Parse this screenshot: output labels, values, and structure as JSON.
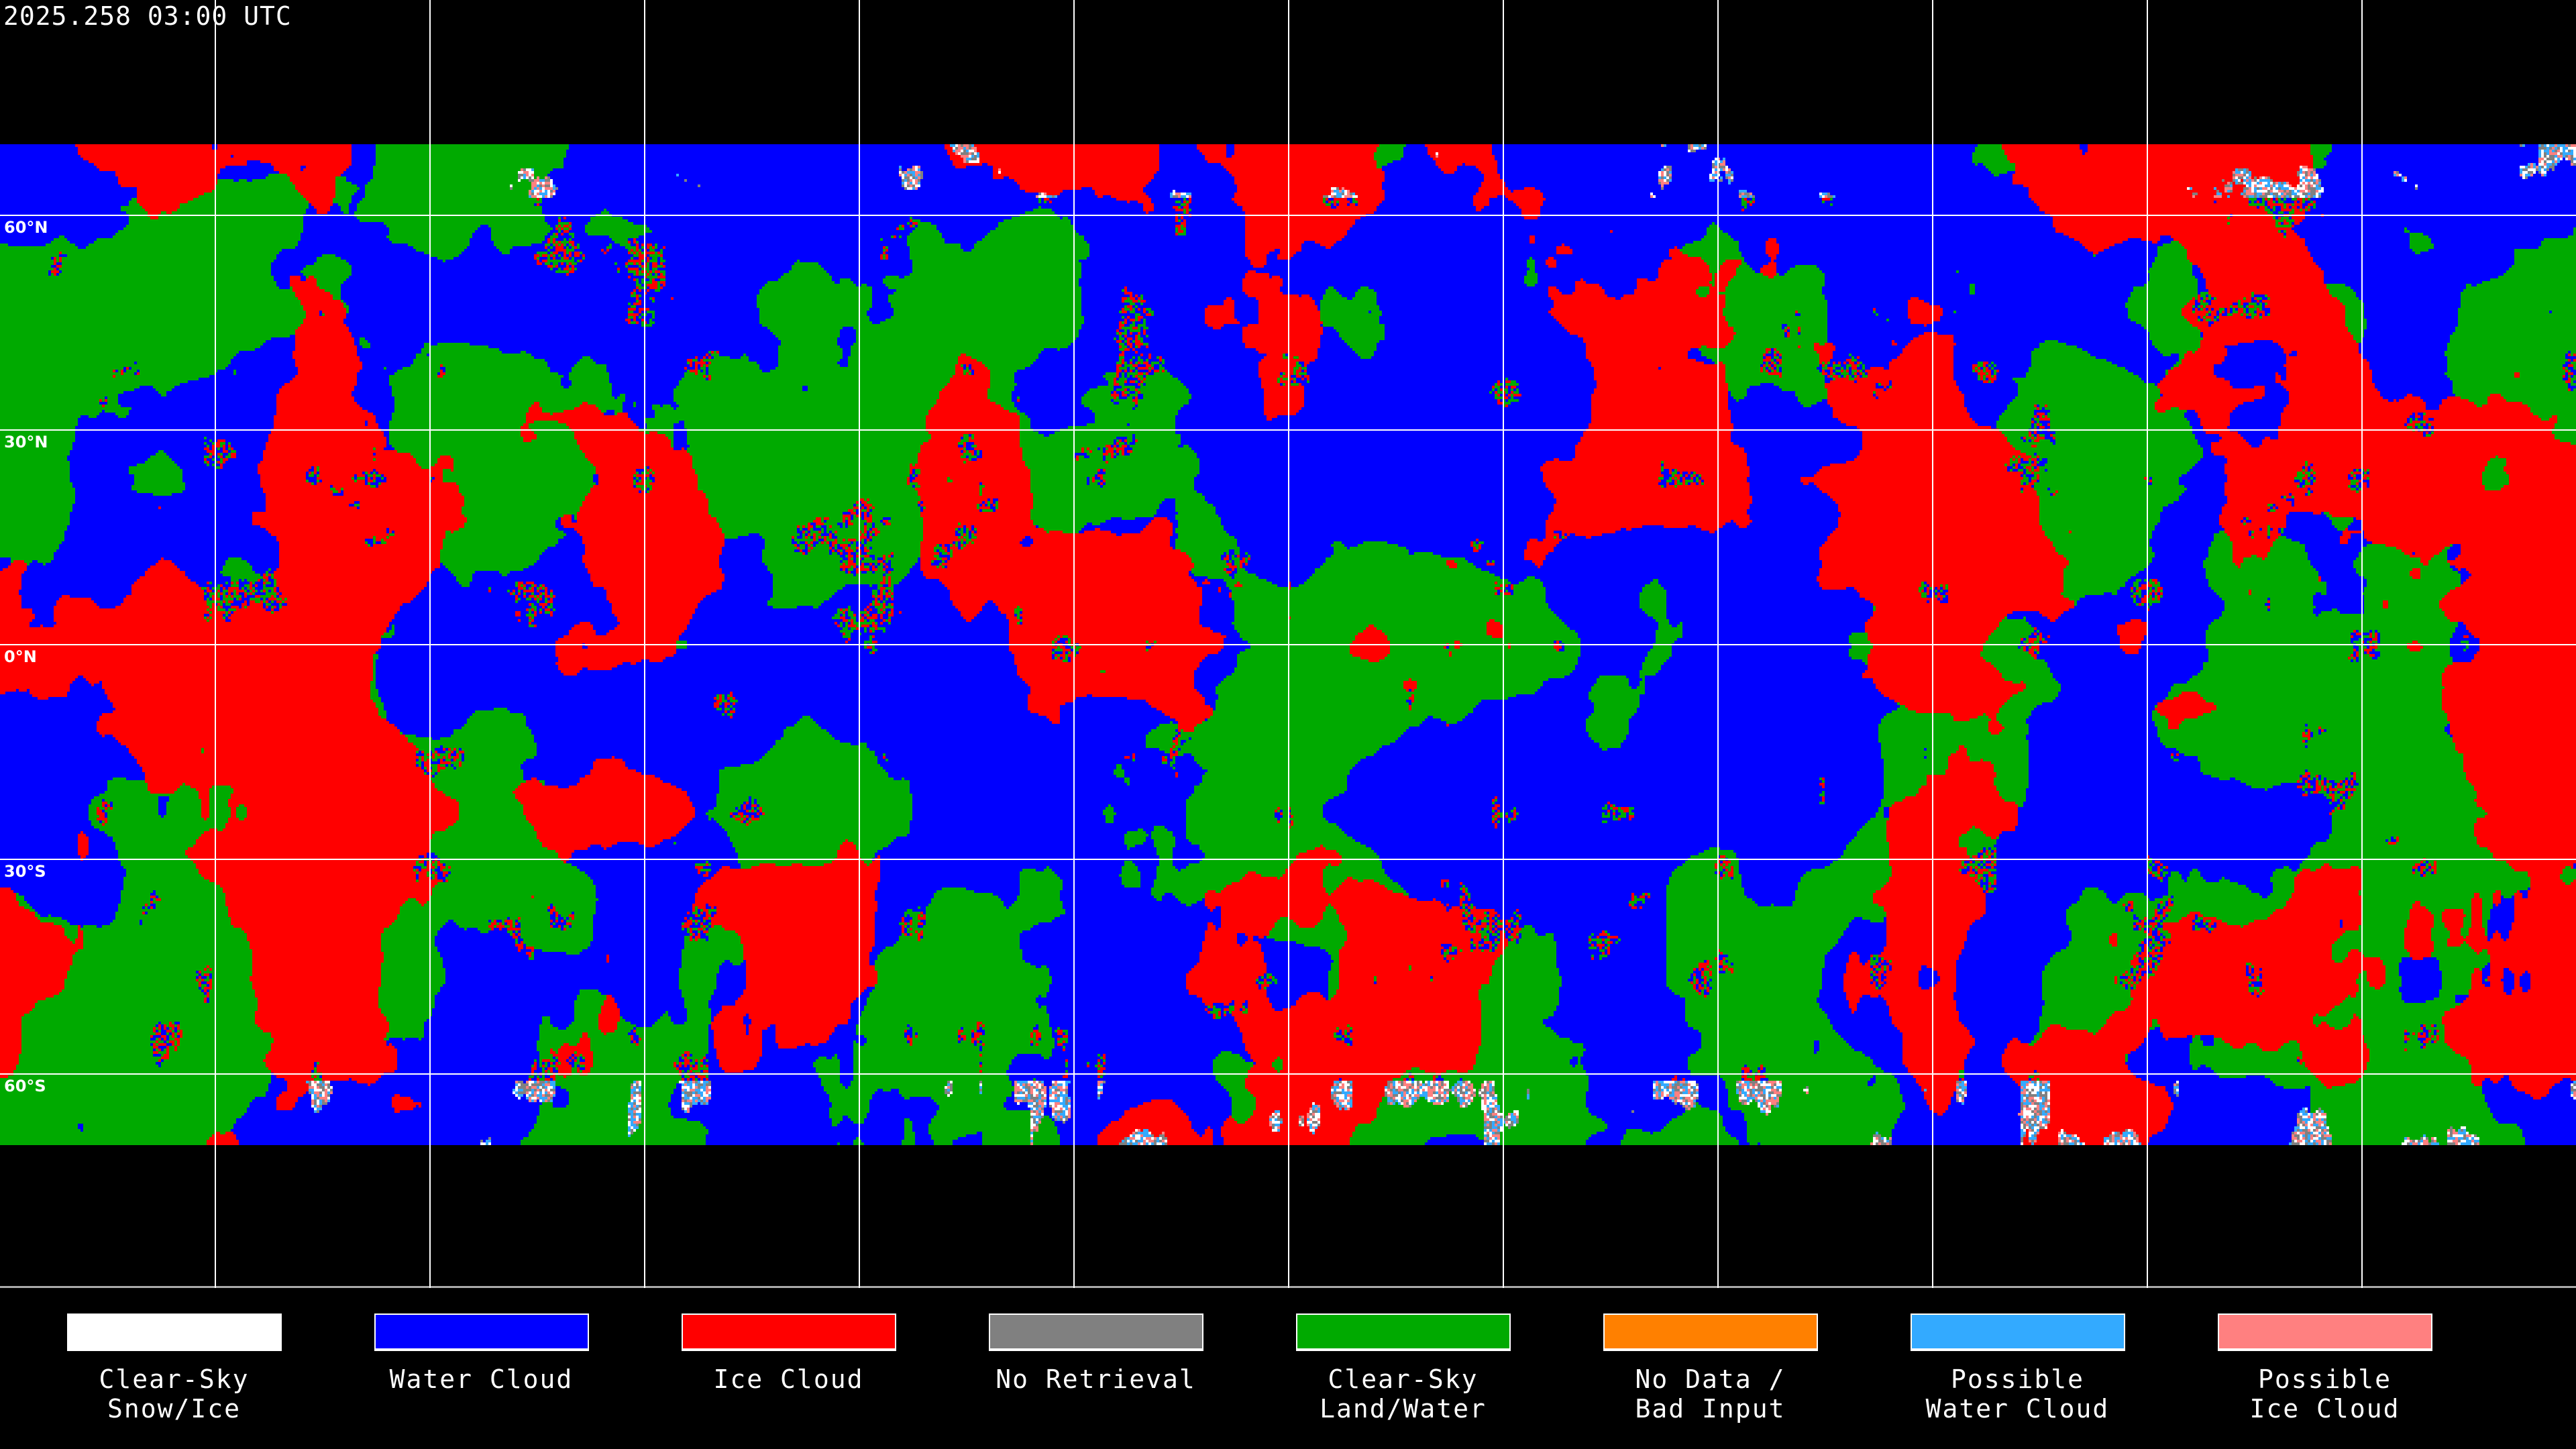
{
  "title": "2025.258 03:00 UTC",
  "latitude_labels": [
    "60°N",
    "30°N",
    "0°N",
    "30°S",
    "60°S"
  ],
  "legend": [
    {
      "label": "Clear-Sky\nSnow/Ice",
      "color": "#ffffff"
    },
    {
      "label": "Water Cloud",
      "color": "#0000ff"
    },
    {
      "label": "Ice Cloud",
      "color": "#ff0000"
    },
    {
      "label": "No Retrieval",
      "color": "#808080"
    },
    {
      "label": "Clear-Sky\nLand/Water",
      "color": "#00aa00"
    },
    {
      "label": "No Data /\nBad Input",
      "color": "#ff8000"
    },
    {
      "label": "Possible\nWater Cloud",
      "color": "#33aaff"
    },
    {
      "label": "Possible\nIce Cloud",
      "color": "#ff8080"
    }
  ]
}
